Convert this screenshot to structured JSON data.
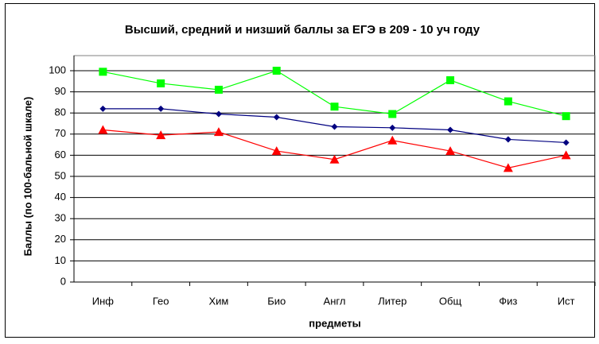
{
  "chart_data": {
    "type": "line",
    "title": "Высший, средний и низший баллы за ЕГЭ в 209 - 10 уч году",
    "x_label": "предметы",
    "y_label": "Баллы (по 100-бальной шкале)",
    "categories": [
      "Инф",
      "Гео",
      "Хим",
      "Био",
      "Англ",
      "Литер",
      "Общ",
      "Физ",
      "Ист"
    ],
    "series": [
      {
        "color": "#00ff00",
        "marker": "square",
        "values": [
          99.5,
          94,
          91,
          100,
          83,
          79.5,
          95.5,
          85.5,
          78.5
        ]
      },
      {
        "color": "#000080",
        "marker": "diamond",
        "values": [
          82,
          82,
          79.5,
          78,
          73.5,
          73,
          72,
          67.5,
          66
        ]
      },
      {
        "color": "#ff0000",
        "marker": "triangle",
        "values": [
          72,
          69.5,
          71,
          62,
          58,
          67,
          62,
          54,
          60
        ]
      }
    ],
    "ylim": [
      0,
      100
    ],
    "yticks": [
      0,
      10,
      20,
      30,
      40,
      50,
      60,
      70,
      80,
      90,
      100
    ],
    "grid": true
  }
}
